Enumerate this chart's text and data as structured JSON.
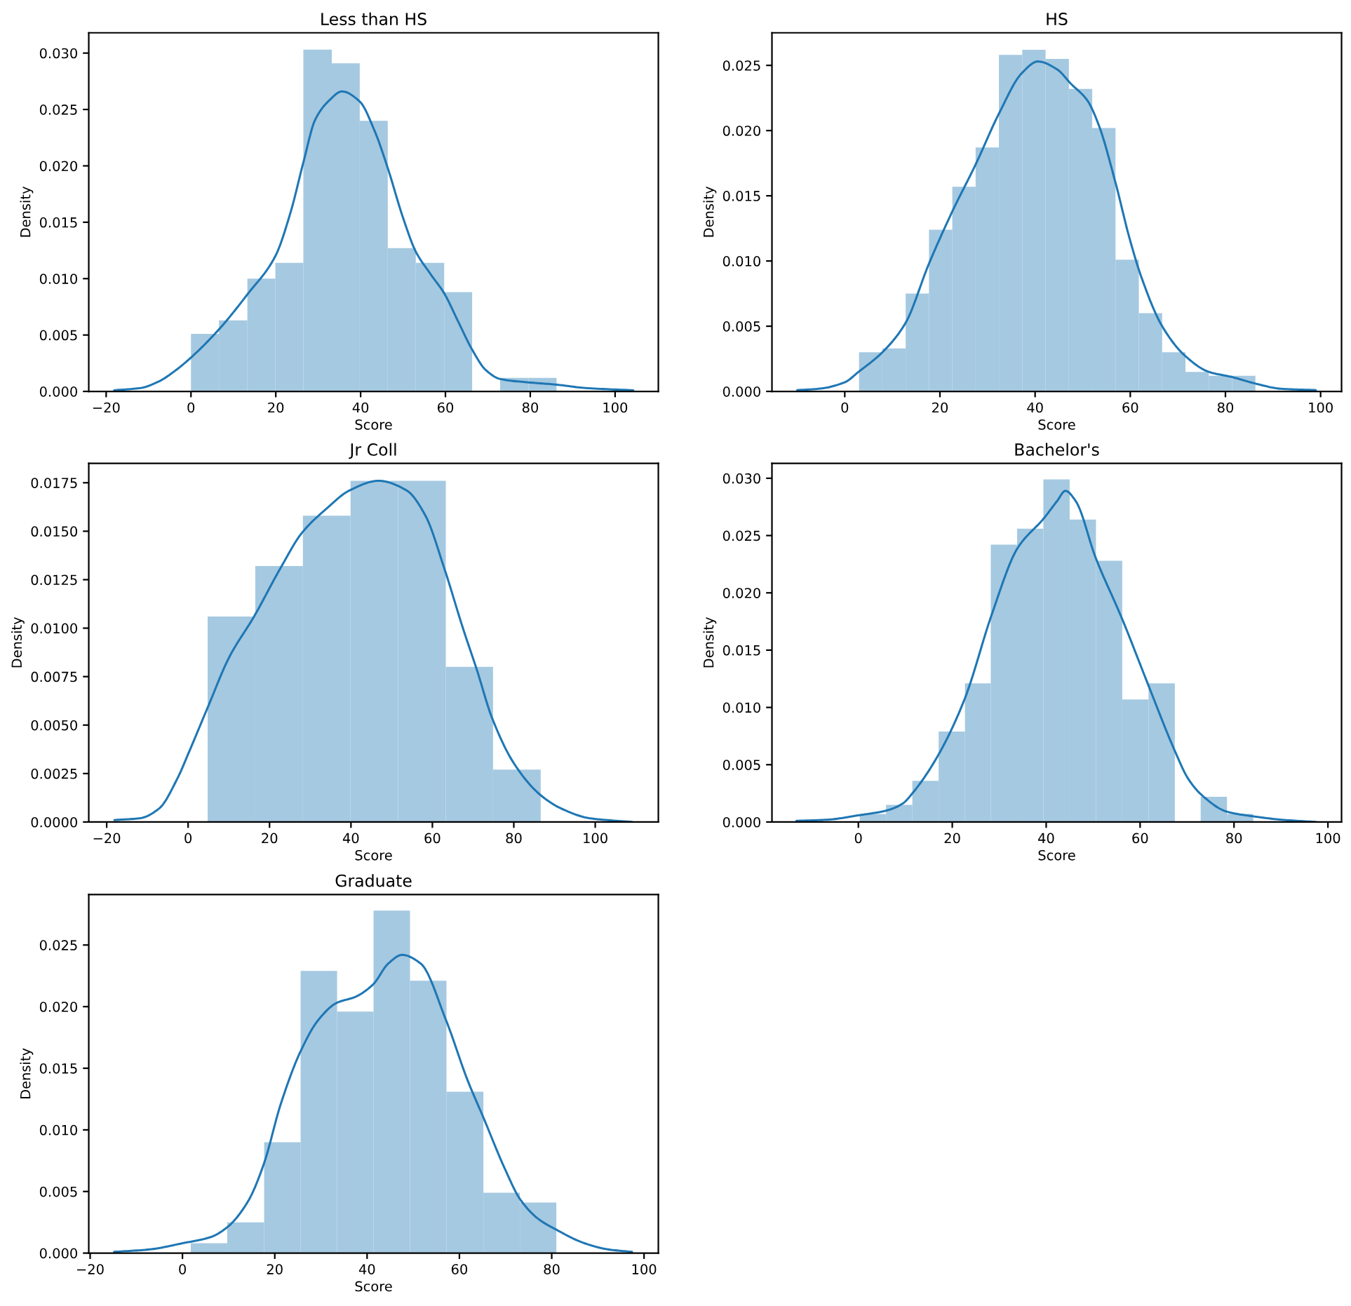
{
  "chart_data": [
    {
      "type": "histogram",
      "title": "Less than HS",
      "xlabel": "Score",
      "ylabel": "Density",
      "xlim": [
        -24.1,
        110.2
      ],
      "xticks": [
        -20,
        0,
        20,
        40,
        60,
        80,
        100
      ],
      "ylim": [
        0,
        0.0318
      ],
      "yticks": [
        {
          "value": 0,
          "label": "0.000"
        },
        {
          "value": 0.005,
          "label": "0.005"
        },
        {
          "value": 0.01,
          "label": "0.010"
        },
        {
          "value": 0.015,
          "label": "0.015"
        },
        {
          "value": 0.02,
          "label": "0.020"
        },
        {
          "value": 0.025,
          "label": "0.025"
        },
        {
          "value": 0.03,
          "label": "0.030"
        }
      ],
      "series": [
        {
          "color": "#a5c9e1",
          "bins": [
            0,
            6.6,
            13.3,
            19.9,
            26.5,
            33.2,
            39.8,
            46.4,
            53.0,
            59.7,
            66.3,
            72.9,
            79.6,
            86.2
          ],
          "values": [
            0.0051,
            0.0063,
            0.01,
            0.0114,
            0.0303,
            0.0291,
            0.024,
            0.0127,
            0.0114,
            0.0088,
            0,
            0.0012,
            0.0012
          ]
        },
        {
          "type": "line",
          "color": "#1f77b4",
          "x": [
            -18.1,
            -11.9,
            -7.5,
            -3.5,
            0,
            6.6,
            13.3,
            19.9,
            23.5,
            26.5,
            29.3,
            32.6,
            35.6,
            39.8,
            43.3,
            46.4,
            50.0,
            53.0,
            56.5,
            59.7,
            63.0,
            66.3,
            69.5,
            72.9,
            79.6,
            86.2,
            93.0,
            104.3
          ],
          "values": [
            0.0001,
            0.0003,
            0.0009,
            0.0019,
            0.003,
            0.0055,
            0.0086,
            0.012,
            0.0159,
            0.0203,
            0.0241,
            0.0258,
            0.0266,
            0.0257,
            0.0231,
            0.0198,
            0.0154,
            0.0124,
            0.0104,
            0.0087,
            0.0062,
            0.0037,
            0.0019,
            0.0011,
            0.0008,
            0.0006,
            0.0003,
            0.0001
          ]
        }
      ]
    },
    {
      "type": "histogram",
      "title": "HS",
      "xlabel": "Score",
      "ylabel": "Density",
      "xlim": [
        -15.3,
        104.4
      ],
      "xticks": [
        0,
        20,
        40,
        60,
        80,
        100
      ],
      "ylim": [
        0,
        0.0275
      ],
      "yticks": [
        {
          "value": 0,
          "label": "0.000"
        },
        {
          "value": 0.005,
          "label": "0.005"
        },
        {
          "value": 0.01,
          "label": "0.010"
        },
        {
          "value": 0.015,
          "label": "0.015"
        },
        {
          "value": 0.02,
          "label": "0.020"
        },
        {
          "value": 0.025,
          "label": "0.025"
        }
      ],
      "series": [
        {
          "color": "#a5c9e1",
          "bins": [
            3.0,
            7.9,
            12.8,
            17.7,
            22.6,
            27.5,
            32.4,
            37.3,
            42.2,
            47.1,
            52.0,
            56.9,
            61.8,
            66.7,
            71.6,
            76.5,
            81.4,
            86.3
          ],
          "values": [
            0.003,
            0.0033,
            0.0075,
            0.0124,
            0.0157,
            0.0187,
            0.0258,
            0.0262,
            0.0255,
            0.0232,
            0.0202,
            0.0101,
            0.006,
            0.003,
            0.0015,
            0.0012,
            0.0012
          ]
        },
        {
          "type": "line",
          "color": "#1f77b4",
          "x": [
            -10.0,
            -5.5,
            0,
            2.9,
            7.9,
            12.7,
            17.7,
            22.6,
            27.5,
            32.4,
            37.2,
            40.6,
            44.6,
            47.5,
            51.0,
            53.4,
            56.9,
            59.8,
            62.3,
            66.7,
            71.6,
            76.5,
            81.4,
            86.3,
            91.7,
            99.0
          ],
          "values": [
            0.0001,
            0.0002,
            0.0007,
            0.0015,
            0.003,
            0.0052,
            0.0098,
            0.0138,
            0.0174,
            0.0213,
            0.0244,
            0.0253,
            0.0247,
            0.0236,
            0.0223,
            0.0204,
            0.016,
            0.0118,
            0.0088,
            0.005,
            0.0027,
            0.0015,
            0.0011,
            0.0006,
            0.0002,
            0.0001
          ]
        }
      ]
    },
    {
      "type": "histogram",
      "title": "Jr Coll",
      "xlabel": "Score",
      "ylabel": "Density",
      "xlim": [
        -24.4,
        115.5
      ],
      "xticks": [
        -20,
        0,
        20,
        40,
        60,
        80,
        100
      ],
      "ylim": [
        0,
        0.0185
      ],
      "yticks": [
        {
          "value": 0,
          "label": "0.0000"
        },
        {
          "value": 0.0025,
          "label": "0.0025"
        },
        {
          "value": 0.005,
          "label": "0.0050"
        },
        {
          "value": 0.0075,
          "label": "0.0075"
        },
        {
          "value": 0.01,
          "label": "0.0100"
        },
        {
          "value": 0.0125,
          "label": "0.0125"
        },
        {
          "value": 0.015,
          "label": "0.0150"
        },
        {
          "value": 0.0175,
          "label": "0.0175"
        }
      ],
      "series": [
        {
          "color": "#a5c9e1",
          "bins": [
            4.8,
            16.5,
            28.2,
            39.9,
            51.6,
            63.3,
            74.9,
            86.6
          ],
          "values": [
            0.0106,
            0.0132,
            0.0158,
            0.0176,
            0.0176,
            0.008,
            0.0027
          ]
        },
        {
          "type": "line",
          "color": "#1f77b4",
          "x": [
            -18.1,
            -11.7,
            -7.1,
            -2.5,
            0,
            4.8,
            10.1,
            16.2,
            22.7,
            27.9,
            34.2,
            39.6,
            46.8,
            53.7,
            58.3,
            62.9,
            67.5,
            71.0,
            74.6,
            80.1,
            86.5,
            91.6,
            98.5,
            109.1
          ],
          "values": [
            0.0001,
            0.0002,
            0.0007,
            0.0023,
            0.0035,
            0.0059,
            0.0085,
            0.0106,
            0.0131,
            0.0149,
            0.0162,
            0.0171,
            0.0176,
            0.0171,
            0.0158,
            0.0131,
            0.01,
            0.0078,
            0.0054,
            0.003,
            0.0014,
            0.0007,
            0.0002,
            0
          ]
        }
      ]
    },
    {
      "type": "histogram",
      "title": "Bachelor's",
      "xlabel": "Score",
      "ylabel": "Density",
      "xlim": [
        -18.4,
        102.9
      ],
      "xticks": [
        0,
        20,
        40,
        60,
        80,
        100
      ],
      "ylim": [
        0,
        0.0313
      ],
      "yticks": [
        {
          "value": 0,
          "label": "0.000"
        },
        {
          "value": 0.005,
          "label": "0.005"
        },
        {
          "value": 0.01,
          "label": "0.010"
        },
        {
          "value": 0.015,
          "label": "0.015"
        },
        {
          "value": 0.02,
          "label": "0.020"
        },
        {
          "value": 0.025,
          "label": "0.025"
        },
        {
          "value": 0.03,
          "label": "0.030"
        }
      ],
      "series": [
        {
          "color": "#a5c9e1",
          "bins": [
            0.3,
            5.9,
            11.5,
            17.1,
            22.7,
            28.2,
            33.8,
            39.4,
            45.0,
            50.6,
            56.2,
            61.8,
            67.4,
            72.9,
            78.5,
            84.1
          ],
          "values": [
            0.0007,
            0.0015,
            0.0036,
            0.0079,
            0.0121,
            0.0242,
            0.0256,
            0.0299,
            0.0264,
            0.0228,
            0.0107,
            0.0121,
            0,
            0.0022,
            0.0007
          ]
        },
        {
          "type": "line",
          "color": "#1f77b4",
          "x": [
            -13.2,
            -6.6,
            0.3,
            6.0,
            9.4,
            11.7,
            17.1,
            22.7,
            28.4,
            33.9,
            39.5,
            42.3,
            44.1,
            46.3,
            50.5,
            56.2,
            61.7,
            67.3,
            70.2,
            73.0,
            78.5,
            84.0,
            90.1,
            97.5
          ],
          "values": [
            0.0001,
            0.0002,
            0.0006,
            0.001,
            0.0016,
            0.0026,
            0.0059,
            0.0108,
            0.0181,
            0.0239,
            0.0265,
            0.028,
            0.0289,
            0.028,
            0.0231,
            0.0177,
            0.012,
            0.0063,
            0.0038,
            0.0024,
            0.0009,
            0.0005,
            0.0002,
            0
          ]
        }
      ]
    },
    {
      "type": "histogram",
      "title": "Graduate",
      "xlabel": "Score",
      "ylabel": "Density",
      "xlim": [
        -20.3,
        103.1
      ],
      "xticks": [
        -20,
        0,
        20,
        40,
        60,
        80,
        100
      ],
      "ylim": [
        0,
        0.0291
      ],
      "yticks": [
        {
          "value": 0,
          "label": "0.000"
        },
        {
          "value": 0.005,
          "label": "0.005"
        },
        {
          "value": 0.01,
          "label": "0.010"
        },
        {
          "value": 0.015,
          "label": "0.015"
        },
        {
          "value": 0.02,
          "label": "0.020"
        },
        {
          "value": 0.025,
          "label": "0.025"
        }
      ],
      "series": [
        {
          "color": "#a5c9e1",
          "bins": [
            1.8,
            9.7,
            17.7,
            25.6,
            33.5,
            41.4,
            49.3,
            57.2,
            65.2,
            73.1,
            81.0
          ],
          "values": [
            0.0008,
            0.0025,
            0.009,
            0.0229,
            0.0196,
            0.0278,
            0.0221,
            0.0131,
            0.0049,
            0.0041
          ]
        },
        {
          "type": "line",
          "color": "#1f77b4",
          "x": [
            -14.8,
            -7.1,
            0,
            6.1,
            9.7,
            14.2,
            17.6,
            21.3,
            25.5,
            29.4,
            33.4,
            37.5,
            41.3,
            44.6,
            47.6,
            51.6,
            57.1,
            61.8,
            65.2,
            69.9,
            73.1,
            77.0,
            81.0,
            87.1,
            92.2,
            97.4
          ],
          "values": [
            0.0001,
            0.0003,
            0.0008,
            0.0013,
            0.0021,
            0.0042,
            0.0072,
            0.0121,
            0.0163,
            0.0189,
            0.0203,
            0.0208,
            0.0218,
            0.0235,
            0.0242,
            0.0235,
            0.0189,
            0.014,
            0.011,
            0.0068,
            0.0044,
            0.0028,
            0.0019,
            0.0008,
            0.0003,
            0.0001
          ]
        }
      ]
    }
  ]
}
